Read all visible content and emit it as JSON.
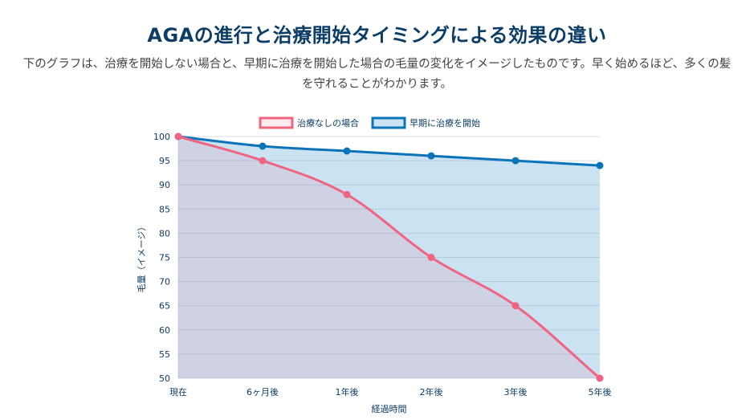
{
  "header": {
    "title": "AGAの進行と治療開始タイミングによる効果の違い",
    "subtitle": "下のグラフは、治療を開始しない場合と、早期に治療を開始した場合の毛量の変化をイメージしたものです。早く始めるほど、多くの髪を守れることがわかります。"
  },
  "chart_data": {
    "type": "line",
    "categories": [
      "現在",
      "6ヶ月後",
      "1年後",
      "2年後",
      "3年後",
      "5年後"
    ],
    "series": [
      {
        "name": "治療なしの場合",
        "values": [
          100,
          95,
          88,
          75,
          65,
          50
        ],
        "color": "#f06482",
        "fill": "rgba(240,100,130,0.12)"
      },
      {
        "name": "早期に治療を開始",
        "values": [
          100,
          98,
          97,
          96,
          95,
          94
        ],
        "color": "#0b73b8",
        "fill": "rgba(82,160,212,0.30)"
      }
    ],
    "xlabel": "経過時間",
    "ylabel": "毛量（イメージ）",
    "ylim": [
      50,
      100
    ],
    "yticks": [
      50,
      55,
      60,
      65,
      70,
      75,
      80,
      85,
      90,
      95,
      100
    ],
    "grid": true,
    "legend_position": "top-center",
    "curve": "smooth"
  }
}
